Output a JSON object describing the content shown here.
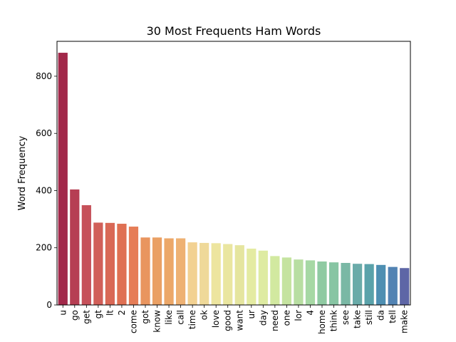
{
  "chart_data": {
    "type": "bar",
    "title": "30 Most Frequents Ham Words",
    "xlabel": "",
    "ylabel": "Word Frequency",
    "ylim": [
      0,
      922
    ],
    "yticks": [
      0,
      200,
      400,
      600,
      800
    ],
    "grid": false,
    "categories": [
      "u",
      "go",
      "get",
      "gt",
      "lt",
      "2",
      "come",
      "got",
      "know",
      "like",
      "call",
      "time",
      "ok",
      "love",
      "good",
      "want",
      "ur",
      "day",
      "need",
      "one",
      "lor",
      "4",
      "home",
      "think",
      "see",
      "take",
      "still",
      "da",
      "tell",
      "make"
    ],
    "values": [
      882,
      404,
      349,
      288,
      287,
      284,
      274,
      236,
      236,
      233,
      233,
      219,
      217,
      216,
      213,
      209,
      197,
      190,
      171,
      166,
      159,
      156,
      152,
      149,
      147,
      144,
      143,
      140,
      133,
      129
    ],
    "colors": [
      "#a2284a",
      "#b63e53",
      "#c6515a",
      "#d15f59",
      "#d96856",
      "#df7053",
      "#e67d57",
      "#e9955f",
      "#eaa064",
      "#eca768",
      "#eeb173",
      "#f2d192",
      "#efd999",
      "#ede59f",
      "#eae6a0",
      "#e5e59f",
      "#e4eba2",
      "#deeba2",
      "#d2e9a0",
      "#c5e3a0",
      "#b8dea2",
      "#a6d8a4",
      "#8fcaa2",
      "#87c5a3",
      "#7ab8a5",
      "#6aaba9",
      "#5aa2aa",
      "#4e8fb2",
      "#5283b3",
      "#5e66a6"
    ]
  }
}
